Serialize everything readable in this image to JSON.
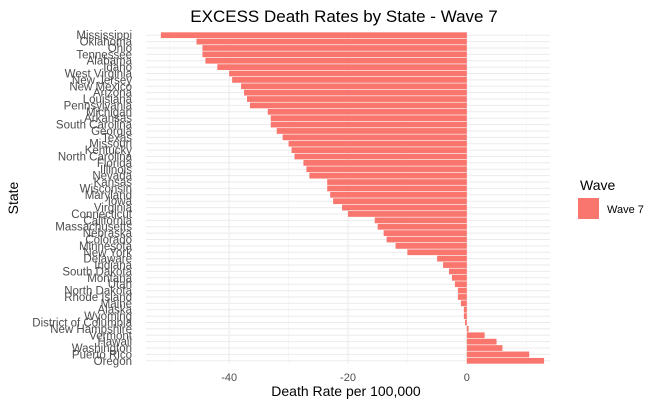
{
  "chart_data": {
    "type": "bar",
    "orientation": "horizontal",
    "title": "EXCESS Death Rates by State - Wave 7",
    "xlabel": "Death Rate per 100,000",
    "ylabel": "State",
    "xlim": [
      -54,
      14
    ],
    "xticks": [
      -40,
      -20,
      0
    ],
    "grid": true,
    "legend": {
      "title": "Wave",
      "position": "right"
    },
    "series": [
      {
        "name": "Wave 7",
        "color": "#F8766D",
        "categories": [
          "Mississippi",
          "Oklahoma",
          "Ohio",
          "Tennessee",
          "Alabama",
          "Idaho",
          "West Virginia",
          "New Jersey",
          "New Mexico",
          "Arizona",
          "Louisiana",
          "Pennsylvania",
          "Michigan",
          "Arkansas",
          "South Carolina",
          "Georgia",
          "Texas",
          "Missouri",
          "Kentucky",
          "North Carolina",
          "Florida",
          "Illinois",
          "Nevada",
          "Kansas",
          "Wisconsin",
          "Maryland",
          "Iowa",
          "Virginia",
          "Connecticut",
          "California",
          "Massachusetts",
          "Nebraska",
          "Colorado",
          "Minnesota",
          "New York",
          "Delaware",
          "Indiana",
          "South Dakota",
          "Montana",
          "Utah",
          "North Dakota",
          "Rhode Island",
          "Maine",
          "Alaska",
          "Wyoming",
          "District of Columbia",
          "New Hampshire",
          "Vermont",
          "Hawaii",
          "Washington",
          "Puerto Rico",
          "Oregon"
        ],
        "values": [
          -51.5,
          -45.5,
          -44.5,
          -44.5,
          -44,
          -42,
          -40,
          -39.5,
          -38,
          -37.5,
          -37,
          -36.5,
          -33.5,
          -33,
          -33,
          -32,
          -31,
          -30,
          -29.5,
          -29,
          -27.5,
          -27,
          -26.5,
          -23.5,
          -23.5,
          -23,
          -22.5,
          -21,
          -20,
          -15.5,
          -15,
          -14,
          -13.5,
          -12,
          -10,
          -5,
          -4,
          -3,
          -2.5,
          -2,
          -1.5,
          -1.5,
          -1,
          -0.5,
          -0.5,
          -0.3,
          0.3,
          3,
          5,
          6,
          10.5,
          13
        ]
      }
    ]
  }
}
